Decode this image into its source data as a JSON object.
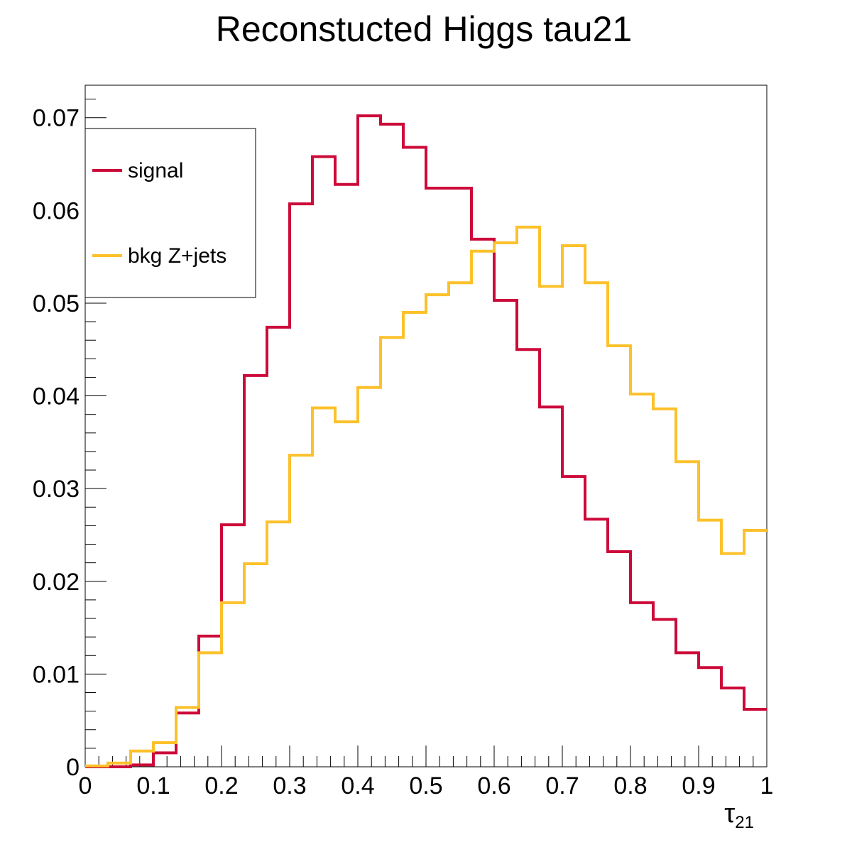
{
  "chart_data": {
    "type": "line",
    "title": "Reconstucted Higgs tau21",
    "xlabel": "τ",
    "xlabel_sub": "21",
    "ylabel": "",
    "xlim": [
      0,
      1
    ],
    "ylim": [
      0,
      0.0735
    ],
    "bins": 30,
    "x_ticks": [
      0,
      0.1,
      0.2,
      0.3,
      0.4,
      0.5,
      0.6,
      0.7,
      0.8,
      0.9,
      1
    ],
    "x_tick_labels": [
      "0",
      "0.1",
      "0.2",
      "0.3",
      "0.4",
      "0.5",
      "0.6",
      "0.7",
      "0.8",
      "0.9",
      "1"
    ],
    "y_ticks": [
      0,
      0.01,
      0.02,
      0.03,
      0.04,
      0.05,
      0.06,
      0.07
    ],
    "y_tick_labels": [
      "0",
      "0.01",
      "0.02",
      "0.03",
      "0.04",
      "0.05",
      "0.06",
      "0.07"
    ],
    "legend": {
      "placement": "top-left"
    },
    "series": [
      {
        "name": "signal",
        "color": "#cc0a3a",
        "values": [
          0.0,
          0.0,
          0.0002,
          0.0015,
          0.0058,
          0.0141,
          0.0261,
          0.0422,
          0.0474,
          0.0607,
          0.0658,
          0.0628,
          0.0702,
          0.0693,
          0.0668,
          0.0624,
          0.0624,
          0.0569,
          0.0503,
          0.045,
          0.0388,
          0.0313,
          0.0267,
          0.0232,
          0.0177,
          0.0159,
          0.0123,
          0.0107,
          0.0085,
          0.0062
        ]
      },
      {
        "name": "bkg Z+jets",
        "color": "#fcc12b",
        "values": [
          0.0001,
          0.0004,
          0.0017,
          0.0026,
          0.0064,
          0.0123,
          0.0177,
          0.0219,
          0.0264,
          0.0336,
          0.0387,
          0.0372,
          0.0409,
          0.0463,
          0.049,
          0.0509,
          0.0522,
          0.0556,
          0.0565,
          0.0582,
          0.0518,
          0.0562,
          0.0522,
          0.0454,
          0.0402,
          0.0386,
          0.0329,
          0.0266,
          0.023,
          0.0255
        ]
      }
    ]
  }
}
